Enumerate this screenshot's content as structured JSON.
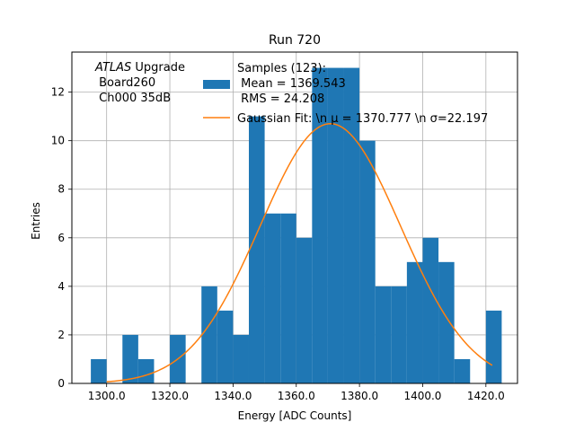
{
  "chart_data": {
    "type": "bar",
    "title": "Run 720",
    "xlabel": "Energy [ADC Counts]",
    "ylabel": "Entries",
    "xlim": [
      1289,
      1430
    ],
    "ylim": [
      0,
      13.65
    ],
    "grid": true,
    "xticks": [
      1300,
      1320,
      1340,
      1360,
      1380,
      1400,
      1420
    ],
    "xtick_labels": [
      "1300.0",
      "1320.0",
      "1340.0",
      "1360.0",
      "1380.0",
      "1400.0",
      "1420.0"
    ],
    "yticks": [
      0,
      2,
      4,
      6,
      8,
      10,
      12
    ],
    "ytick_labels": [
      "0",
      "2",
      "4",
      "6",
      "8",
      "10",
      "12"
    ],
    "annotation": {
      "lines": [
        {
          "italic": "ATLAS",
          "text": " Upgrade"
        },
        {
          "italic": "",
          "text": " Board260"
        },
        {
          "italic": "",
          "text": " Ch000 35dB"
        }
      ]
    },
    "legend": {
      "placement": "top-right",
      "entries": [
        {
          "type": "patch",
          "label_lines": [
            "Samples (123):",
            " Mean = 1369.543",
            " RMS = 24.208"
          ],
          "color": "#1f77b4"
        },
        {
          "type": "line",
          "label_lines": [
            "Gaussian Fit: \\n μ = 1370.777 \\n σ=22.197"
          ],
          "color": "#ff7f0e"
        }
      ]
    },
    "series": [
      {
        "name": "Samples (123)",
        "kind": "histogram",
        "color": "#1f77b4",
        "bin_edges": [
          1295,
          1300,
          1305,
          1310,
          1315,
          1320,
          1325,
          1330,
          1335,
          1340,
          1345,
          1350,
          1355,
          1360,
          1365,
          1370,
          1375,
          1380,
          1385,
          1390,
          1395,
          1400,
          1405,
          1410,
          1415,
          1420,
          1425
        ],
        "counts": [
          1,
          0,
          2,
          1,
          0,
          2,
          0,
          4,
          3,
          2,
          11,
          7,
          7,
          6,
          13,
          13,
          13,
          10,
          4,
          4,
          5,
          6,
          5,
          1,
          0,
          3
        ]
      },
      {
        "name": "Gaussian Fit",
        "kind": "gaussian",
        "color": "#ff7f0e",
        "mu": 1370.777,
        "sigma": 22.197,
        "amplitude": 10.7,
        "x_range": [
          1300,
          1422
        ]
      }
    ]
  }
}
